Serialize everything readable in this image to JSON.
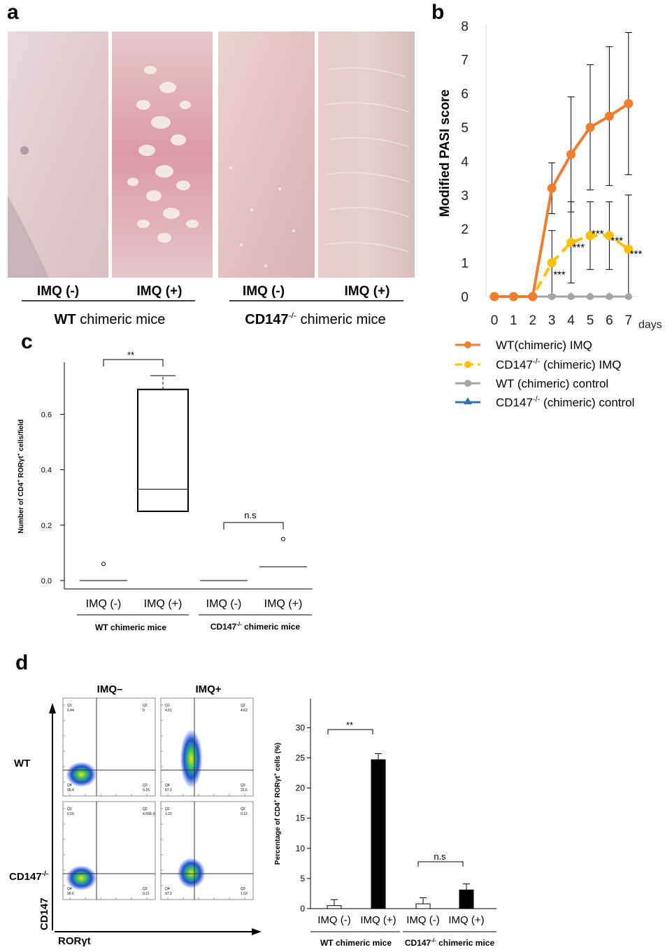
{
  "panel_labels": {
    "a": "a",
    "b": "b",
    "c": "c",
    "d": "d"
  },
  "panel_a": {
    "photo_labels": [
      "IMQ (-)",
      "IMQ (+)",
      "IMQ (-)",
      "IMQ (+)"
    ],
    "group_wt_bold": "WT",
    "group_wt_rest": " chimeric mice",
    "group_ko_bold": "CD147",
    "group_ko_sup": "-/-",
    "group_ko_rest": " chimeric mice"
  },
  "chart_data": [
    {
      "id": "b",
      "type": "line",
      "ylabel": "Modified PASI score",
      "xlabel": "days",
      "x": [
        0,
        1,
        2,
        3,
        4,
        5,
        6,
        7
      ],
      "ylim": [
        0,
        8
      ],
      "yticks": [
        0,
        1,
        2,
        3,
        4,
        5,
        6,
        7,
        8
      ],
      "series": [
        {
          "name": "WT(chimeric) IMQ",
          "color": "#ED7D31",
          "dash": false,
          "marker": "circle",
          "values": [
            0,
            0,
            0,
            3.2,
            4.2,
            5.0,
            5.33,
            5.7
          ],
          "err": [
            0,
            0,
            0,
            0.75,
            1.7,
            1.85,
            2.05,
            2.1
          ]
        },
        {
          "name": "CD147-/- (chimeric) IMQ",
          "color": "#FFC000",
          "dash": true,
          "marker": "circle",
          "values": [
            0,
            0,
            0,
            1.0,
            1.6,
            1.8,
            1.8,
            1.4
          ],
          "err": [
            0,
            0,
            0,
            0.95,
            1.2,
            1.0,
            1.0,
            1.6
          ]
        },
        {
          "name": "WT (chimeric) control",
          "color": "#A5A5A5",
          "dash": false,
          "marker": "circle",
          "values": [
            0,
            0,
            0,
            0,
            0,
            0,
            0,
            0
          ]
        },
        {
          "name": "CD147-/- (chimeric) control",
          "color": "#2E75B6",
          "dash": false,
          "marker": "triangle",
          "values": [
            0,
            0,
            0,
            0,
            0,
            0,
            0,
            0
          ]
        }
      ],
      "annotations": [
        "***",
        "***",
        "***",
        "***",
        "***"
      ],
      "legend": [
        {
          "main": "WT(chimeric) IMQ",
          "sup": "",
          "tail": ""
        },
        {
          "main": "CD147",
          "sup": "-/-",
          "tail": " (chimeric) IMQ"
        },
        {
          "main": "WT (chimeric) control",
          "sup": "",
          "tail": ""
        },
        {
          "main": "CD147",
          "sup": "-/-",
          "tail": " (chimeric) control"
        }
      ]
    },
    {
      "id": "c",
      "type": "box",
      "ylabel_parts": [
        "Number of CD4",
        "+",
        " RORγt",
        "+",
        " cells/field"
      ],
      "ylim": [
        0,
        0.75
      ],
      "yticks": [
        0.0,
        0.2,
        0.4,
        0.6
      ],
      "ytick_labels": [
        "0.0",
        "0.2",
        "0.4",
        "0.6"
      ],
      "categories": [
        "IMQ (-)",
        "IMQ (+)",
        "IMQ (-)",
        "IMQ (+)"
      ],
      "boxes": [
        {
          "median": 0.0,
          "q1": 0.0,
          "q3": 0.0,
          "outlier": 0.06
        },
        {
          "median": 0.33,
          "q1": 0.25,
          "q3": 0.69,
          "whisker_high": 0.74
        },
        {
          "median": 0.0,
          "q1": 0.0,
          "q3": 0.0
        },
        {
          "median": 0.05,
          "q1": 0.05,
          "q3": 0.05,
          "outlier": 0.15
        }
      ],
      "group_labels": [
        "WT chimeric mice",
        "CD147",
        "-/-",
        " chimeric mice"
      ],
      "sig": [
        "**",
        "n.s"
      ]
    },
    {
      "id": "d_bar",
      "type": "bar",
      "ylabel_parts": [
        "Percentage of CD4",
        "+",
        " RORγt",
        "+",
        " cells (%)"
      ],
      "ylim": [
        0,
        30
      ],
      "yticks": [
        0,
        5,
        10,
        15,
        20,
        25,
        30
      ],
      "categories": [
        "IMQ (-)",
        "IMQ (+)",
        "IMQ (-)",
        "IMQ (+)"
      ],
      "values": [
        0.5,
        24.7,
        0.8,
        3.1
      ],
      "err": [
        1.0,
        1.0,
        1.0,
        1.0
      ],
      "fills": [
        "#ffffff",
        "#000000",
        "#ffffff",
        "#000000"
      ],
      "group_labels": [
        "WT chimeric mice",
        "CD147",
        "-/-",
        " chimeric mice"
      ],
      "sig": [
        "**",
        "n.s"
      ]
    }
  ],
  "panel_d_flow": {
    "col_labels": [
      "IMQ–",
      "IMQ+"
    ],
    "row_labels": [
      "WT",
      "CD147",
      "-/-"
    ],
    "axis_y": "CD147",
    "axis_x": "RORγt",
    "plots": [
      {
        "q1": "Q1",
        "q1v": "0.44",
        "q2": "Q2",
        "q2v": "0",
        "q3": "Q3",
        "q3v": "0.16",
        "q4": "Q4",
        "q4v": "99.4"
      },
      {
        "q1": "Q1",
        "q1v": "4.51",
        "q2": "Q2",
        "q2v": "4.63",
        "q3": "Q3",
        "q3v": "23.6",
        "q4": "Q4",
        "q4v": "67.2"
      },
      {
        "q1": "Q1",
        "q1v": "0.15",
        "q2": "Q2",
        "q2v": "4.56E-3",
        "q3": "Q3",
        "q3v": "0.21",
        "q4": "Q4",
        "q4v": "99.6"
      },
      {
        "q1": "Q1",
        "q1v": "1.22",
        "q2": "Q2",
        "q2v": "0.12",
        "q3": "Q3",
        "q3v": "1.03",
        "q4": "Q4",
        "q4v": "97.2"
      }
    ]
  }
}
